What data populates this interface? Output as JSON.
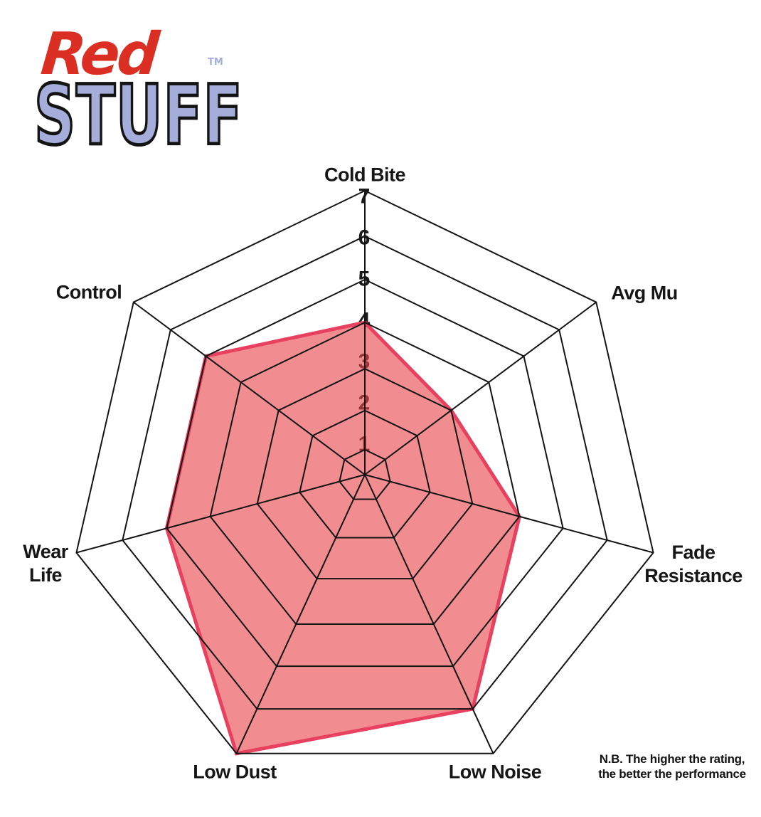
{
  "logo": {
    "word1": "Red",
    "word2": "STUFF",
    "tm": "TM",
    "colors": {
      "red": "#DC2F23",
      "periwinkle": "#A5AEDA",
      "outline": "#141414"
    }
  },
  "note": {
    "line1": "N.B. The higher the rating,",
    "line2": "the better the performance"
  },
  "chart_data": {
    "type": "radar",
    "categories": [
      "Cold Bite",
      "Avg Mu",
      "Fade Resistance",
      "Low Noise",
      "Low Dust",
      "Wear Life",
      "Control"
    ],
    "values": [
      4,
      3,
      4,
      6,
      7,
      5,
      5
    ],
    "axis_range": [
      0,
      7
    ],
    "ring_labels": [
      "1",
      "2",
      "3",
      "4",
      "5",
      "6",
      "7"
    ],
    "grid": "heptagon-web",
    "legend_position": "none",
    "colors": {
      "fill": "#E8474C",
      "fill_opacity": "0.62",
      "outline": "#E8415F",
      "grid": "#141414",
      "number": "#1b1b1b",
      "label": "#161616"
    },
    "note": "N.B. The higher the rating, the better the performance"
  }
}
